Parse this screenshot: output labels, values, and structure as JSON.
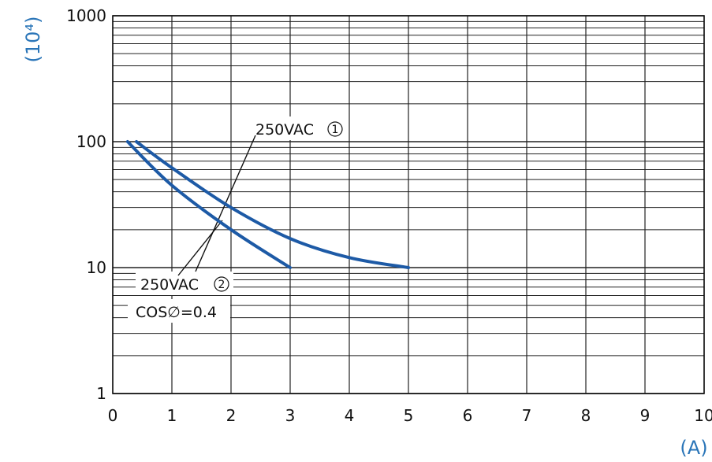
{
  "chart_data": {
    "type": "line",
    "xlabel": "(A)",
    "ylabel": "(10⁴)",
    "xlim": [
      0,
      10
    ],
    "ylim": [
      1,
      1000
    ],
    "yscale": "log",
    "grid": true,
    "x_ticks": [
      "0",
      "1",
      "2",
      "3",
      "4",
      "5",
      "6",
      "7",
      "8",
      "9",
      "10"
    ],
    "y_ticks": [
      "1",
      "10",
      "100",
      "1000"
    ],
    "series": [
      {
        "name": "250VAC ①",
        "x": [
          0.4,
          1.0,
          2.0,
          3.0,
          4.0,
          5.0
        ],
        "y": [
          100,
          62,
          30,
          17,
          12,
          10
        ]
      },
      {
        "name": "250VAC ②",
        "note": "COS∅=0.4",
        "x": [
          0.25,
          1.0,
          2.0,
          3.0
        ],
        "y": [
          100,
          45,
          20,
          10
        ]
      }
    ],
    "annotations": [
      {
        "text": "250VAC",
        "marker": "1"
      },
      {
        "text": "250VAC",
        "marker": "2"
      },
      {
        "text": "COS∅=0.4"
      }
    ],
    "colors": {
      "curve": "#1d5aa6",
      "axis_title": "#2a75b8",
      "grid": "#222222"
    }
  }
}
